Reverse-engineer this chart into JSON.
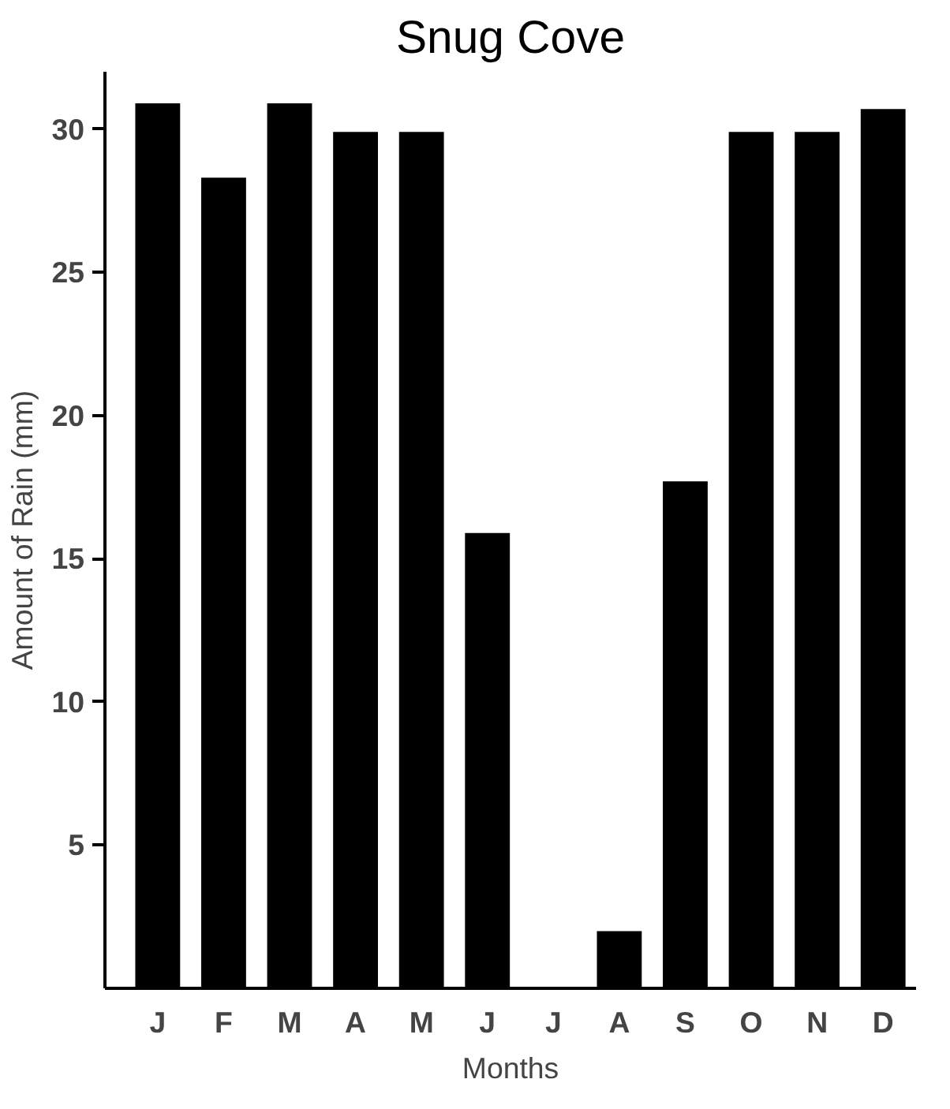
{
  "chart_data": {
    "type": "bar",
    "title": "Snug Cove",
    "xlabel": "Months",
    "ylabel": "Amount of Rain (mm)",
    "categories": [
      "J",
      "F",
      "M",
      "A",
      "M",
      "J",
      "J",
      "A",
      "S",
      "O",
      "N",
      "D"
    ],
    "values": [
      30.9,
      28.3,
      30.9,
      29.9,
      29.9,
      15.9,
      0,
      2,
      17.7,
      29.9,
      29.9,
      30.7
    ],
    "color": "#000000",
    "ylim": [
      0,
      32
    ],
    "yticks": [
      5,
      10,
      15,
      20,
      25,
      30
    ],
    "grid": false
  }
}
